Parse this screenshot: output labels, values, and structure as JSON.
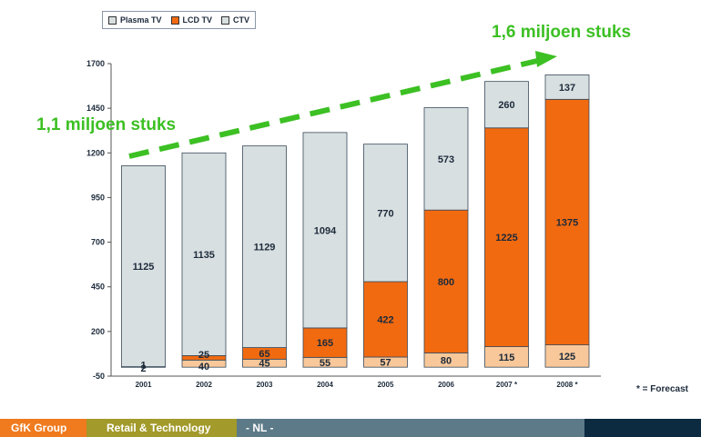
{
  "legend": [
    {
      "label": "Plasma TV",
      "color": "#d8dfe1"
    },
    {
      "label": "LCD TV",
      "color": "#f26a10"
    },
    {
      "label": "CTV",
      "color": "#d8dfe1"
    }
  ],
  "headline_left": "1,1 miljoen stuks",
  "headline_right": "1,6 miljoen stuks",
  "footnote": "* = Forecast",
  "footer": {
    "group": "GfK Group",
    "division": "Retail & Technology",
    "country": "- NL -"
  },
  "colors": {
    "plasma": "#f9c89a",
    "lcd": "#f26a10",
    "ctv": "#d8dfe1",
    "trend_arrow": "#3cc023",
    "axis_text": "#1c2a3a"
  },
  "chart_data": {
    "type": "bar",
    "stacked": true,
    "categories": [
      "2001",
      "2002",
      "2003",
      "2004",
      "2005",
      "2006",
      "2007 *",
      "2008 *"
    ],
    "series": [
      {
        "name": "Plasma TV",
        "values": [
          2,
          40,
          45,
          55,
          57,
          80,
          115,
          125
        ],
        "labels": [
          "2",
          "40",
          "45",
          "55",
          "57",
          "80",
          "115",
          "125"
        ]
      },
      {
        "name": "LCD TV",
        "values": [
          1,
          25,
          65,
          165,
          422,
          800,
          1225,
          1375
        ],
        "labels": [
          "1",
          "25",
          "65",
          "165",
          "422",
          "800",
          "1225",
          "1375"
        ]
      },
      {
        "name": "CTV",
        "values": [
          1125,
          1135,
          1129,
          1094,
          770,
          573,
          260,
          137
        ],
        "labels": [
          "1125",
          "1135",
          "1129",
          "1094",
          "770",
          "573",
          "260",
          "137"
        ]
      }
    ],
    "yticks": [
      "-50",
      "200",
      "450",
      "700",
      "950",
      "1200",
      "1450",
      "1700"
    ],
    "ylim": [
      -50,
      1700
    ],
    "grid": false
  }
}
